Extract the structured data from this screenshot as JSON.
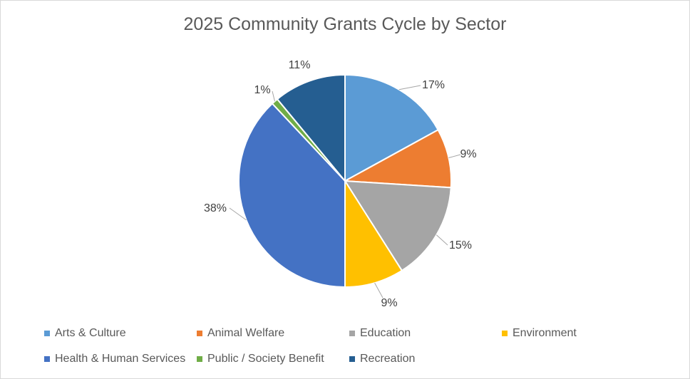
{
  "chart_data": {
    "type": "pie",
    "title": "2025 Community Grants Cycle by Sector",
    "slices": [
      {
        "name": "Arts & Culture",
        "value": 17,
        "label": "17%",
        "color": "#5b9bd5"
      },
      {
        "name": "Animal Welfare",
        "value": 9,
        "label": "9%",
        "color": "#ed7d31"
      },
      {
        "name": "Education",
        "value": 15,
        "label": "15%",
        "color": "#a5a5a5"
      },
      {
        "name": "Environment",
        "value": 9,
        "label": "9%",
        "color": "#ffc000"
      },
      {
        "name": "Health & Human Services",
        "value": 38,
        "label": "38%",
        "color": "#4472c4"
      },
      {
        "name": "Public / Society Benefit",
        "value": 1,
        "label": "1%",
        "color": "#70ad47"
      },
      {
        "name": "Recreation",
        "value": 11,
        "label": "11%",
        "color": "#255e91"
      }
    ],
    "legend_position": "bottom"
  }
}
